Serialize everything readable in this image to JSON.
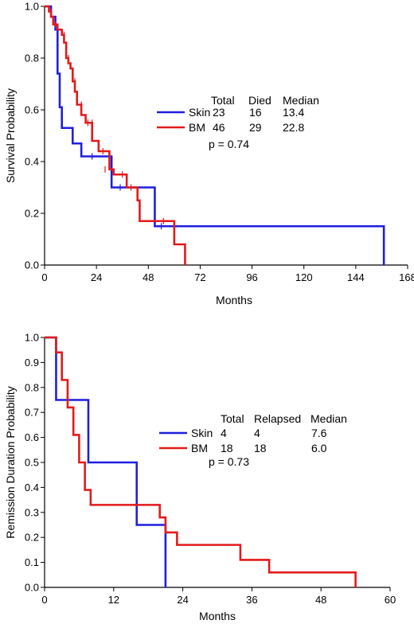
{
  "chart_data": [
    {
      "type": "line",
      "subtype": "kaplan-meier",
      "title": "",
      "xlabel": "Months",
      "ylabel": "Survival Probability",
      "xlim": [
        0,
        168
      ],
      "ylim": [
        0,
        1.0
      ],
      "x_ticks": [
        0,
        24,
        48,
        72,
        96,
        120,
        144,
        168
      ],
      "y_ticks": [
        0.0,
        0.2,
        0.4,
        0.6,
        0.8,
        1.0
      ],
      "x_tick_labels": [
        "0",
        "24",
        "48",
        "72",
        "96",
        "120",
        "144",
        "168"
      ],
      "y_tick_labels": [
        "0.0",
        "0.2",
        "0.4",
        "0.6",
        "0.8",
        "1.0"
      ],
      "grid": false,
      "legend_placement": "center-right",
      "legend_header": [
        "Total",
        "Died",
        "Median"
      ],
      "p_value_text": "p = 0.74",
      "series": [
        {
          "name": "Skin",
          "color": "#1f1fe0",
          "stats": [
            "23",
            "16",
            "13.4"
          ],
          "steps": [
            [
              0,
              1.0
            ],
            [
              3,
              0.96
            ],
            [
              5,
              0.91
            ],
            [
              6,
              0.74
            ],
            [
              7,
              0.61
            ],
            [
              8,
              0.53
            ],
            [
              13,
              0.47
            ],
            [
              17,
              0.42
            ],
            [
              31,
              0.3
            ],
            [
              51,
              0.15
            ],
            [
              157,
              0.0
            ]
          ],
          "end_x": 157,
          "censor": [
            [
              22,
              0.42
            ],
            [
              35,
              0.3
            ],
            [
              54,
              0.15
            ]
          ]
        },
        {
          "name": "BM",
          "color": "#e31a1a",
          "stats": [
            "46",
            "29",
            "22.8"
          ],
          "steps": [
            [
              0,
              1.0
            ],
            [
              2,
              0.98
            ],
            [
              3,
              0.96
            ],
            [
              4,
              0.93
            ],
            [
              6,
              0.91
            ],
            [
              8,
              0.89
            ],
            [
              9,
              0.86
            ],
            [
              10,
              0.8
            ],
            [
              11,
              0.78
            ],
            [
              12,
              0.76
            ],
            [
              13,
              0.71
            ],
            [
              14,
              0.67
            ],
            [
              15,
              0.62
            ],
            [
              17,
              0.58
            ],
            [
              19,
              0.55
            ],
            [
              22,
              0.48
            ],
            [
              25,
              0.44
            ],
            [
              30,
              0.37
            ],
            [
              32,
              0.35
            ],
            [
              38,
              0.3
            ],
            [
              43,
              0.25
            ],
            [
              44,
              0.17
            ],
            [
              60,
              0.08
            ],
            [
              65,
              0.0
            ]
          ],
          "end_x": 65,
          "censor": [
            [
              3,
              0.98
            ],
            [
              5,
              0.93
            ],
            [
              9,
              0.89
            ],
            [
              11,
              0.8
            ],
            [
              14,
              0.71
            ],
            [
              17,
              0.62
            ],
            [
              20,
              0.55
            ],
            [
              22,
              0.55
            ],
            [
              27,
              0.44
            ],
            [
              28,
              0.37
            ],
            [
              36,
              0.35
            ],
            [
              40,
              0.3
            ],
            [
              55,
              0.17
            ]
          ]
        }
      ]
    },
    {
      "type": "line",
      "subtype": "kaplan-meier",
      "title": "",
      "xlabel": "Months",
      "ylabel": "Remission Duration Probability",
      "xlim": [
        0,
        60
      ],
      "ylim": [
        0,
        1.0
      ],
      "x_ticks": [
        0,
        12,
        24,
        36,
        48,
        60
      ],
      "y_ticks": [
        0.0,
        0.1,
        0.2,
        0.3,
        0.4,
        0.5,
        0.6,
        0.7,
        0.8,
        0.9,
        1.0
      ],
      "x_tick_labels": [
        "0",
        "12",
        "24",
        "36",
        "48",
        "60"
      ],
      "y_tick_labels": [
        "0.0",
        "0.1",
        "0.2",
        "0.3",
        "0.4",
        "0.5",
        "0.6",
        "0.7",
        "0.8",
        "0.9",
        "1.0"
      ],
      "grid": false,
      "legend_placement": "center-right",
      "legend_header": [
        "Total",
        "Relapsed",
        "Median"
      ],
      "p_value_text": "p = 0.73",
      "series": [
        {
          "name": "Skin",
          "color": "#1f1fe0",
          "stats": [
            "4",
            "4",
            "7.6"
          ],
          "steps": [
            [
              0,
              1.0
            ],
            [
              2,
              0.75
            ],
            [
              7.6,
              0.5
            ],
            [
              16,
              0.25
            ],
            [
              21,
              0.0
            ]
          ],
          "end_x": 21,
          "censor": []
        },
        {
          "name": "BM",
          "color": "#e31a1a",
          "stats": [
            "18",
            "18",
            "6.0"
          ],
          "steps": [
            [
              0,
              1.0
            ],
            [
              2,
              0.94
            ],
            [
              3,
              0.83
            ],
            [
              4,
              0.72
            ],
            [
              5,
              0.61
            ],
            [
              6,
              0.5
            ],
            [
              7,
              0.39
            ],
            [
              8,
              0.33
            ],
            [
              20,
              0.28
            ],
            [
              21,
              0.22
            ],
            [
              23,
              0.17
            ],
            [
              34,
              0.11
            ],
            [
              39,
              0.06
            ],
            [
              54,
              0.0
            ]
          ],
          "end_x": 54,
          "censor": []
        }
      ]
    }
  ]
}
